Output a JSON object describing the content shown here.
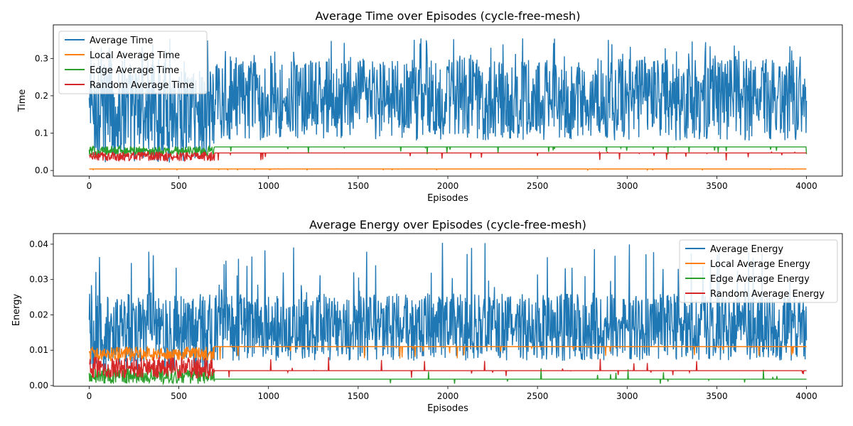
{
  "chart_data": [
    {
      "type": "line",
      "title": "Average Time over Episodes (cycle-free-mesh)",
      "xlabel": "Episodes",
      "ylabel": "Time",
      "xlim": [
        -200,
        4200
      ],
      "ylim": [
        -0.015,
        0.39
      ],
      "xticks": [
        0,
        500,
        1000,
        1500,
        2000,
        2500,
        3000,
        3500,
        4000
      ],
      "yticks": [
        0.0,
        0.1,
        0.2,
        0.3
      ],
      "ytick_labels": [
        "0.0",
        "0.1",
        "0.2",
        "0.3"
      ],
      "legend_position": "upper-left",
      "grid": false,
      "series": [
        {
          "name": "Average Time",
          "color": "#1f77b4",
          "profile": {
            "x_end": 4000,
            "base": 0.2,
            "lo": 0.08,
            "hi": 0.3,
            "spike_max": 0.355,
            "early_lo": 0.02,
            "early_until": 700
          }
        },
        {
          "name": "Local Average Time",
          "color": "#ff7f0e",
          "profile": {
            "x_end": 4000,
            "base": 0.004,
            "lo": 0.001,
            "hi": 0.005
          }
        },
        {
          "name": "Edge Average Time",
          "color": "#2ca02c",
          "profile": {
            "x_end": 4000,
            "base": 0.063,
            "lo": 0.04,
            "hi": 0.065,
            "early_until": 700
          }
        },
        {
          "name": "Random Average Time",
          "color": "#d62728",
          "profile": {
            "x_end": 4000,
            "base": 0.047,
            "lo": 0.025,
            "hi": 0.05,
            "early_until": 700
          }
        }
      ]
    },
    {
      "type": "line",
      "title": "Average Energy over Episodes (cycle-free-mesh)",
      "xlabel": "Episodes",
      "ylabel": "Energy",
      "xlim": [
        -200,
        4200
      ],
      "ylim": [
        -0.0002,
        0.043
      ],
      "xticks": [
        0,
        500,
        1000,
        1500,
        2000,
        2500,
        3000,
        3500,
        4000
      ],
      "yticks": [
        0.0,
        0.01,
        0.02,
        0.03,
        0.04
      ],
      "ytick_labels": [
        "0.00",
        "0.01",
        "0.02",
        "0.03",
        "0.04"
      ],
      "legend_position": "upper-right",
      "grid": false,
      "series": [
        {
          "name": "Average Energy",
          "color": "#1f77b4",
          "profile": {
            "x_end": 4000,
            "base": 0.015,
            "lo": 0.007,
            "hi": 0.026,
            "spike_max": 0.041,
            "early_lo": 0.004,
            "early_until": 700
          }
        },
        {
          "name": "Local Average Energy",
          "color": "#ff7f0e",
          "profile": {
            "x_end": 4000,
            "base": 0.011,
            "lo": 0.007,
            "hi": 0.011,
            "early_until": 700
          }
        },
        {
          "name": "Edge Average Energy",
          "color": "#2ca02c",
          "profile": {
            "x_end": 4000,
            "base": 0.0018,
            "lo": 0.0005,
            "hi": 0.005,
            "early_until": 700
          }
        },
        {
          "name": "Random Average Energy",
          "color": "#d62728",
          "profile": {
            "x_end": 4000,
            "base": 0.0042,
            "lo": 0.002,
            "hi": 0.008,
            "early_until": 700
          }
        }
      ]
    }
  ]
}
